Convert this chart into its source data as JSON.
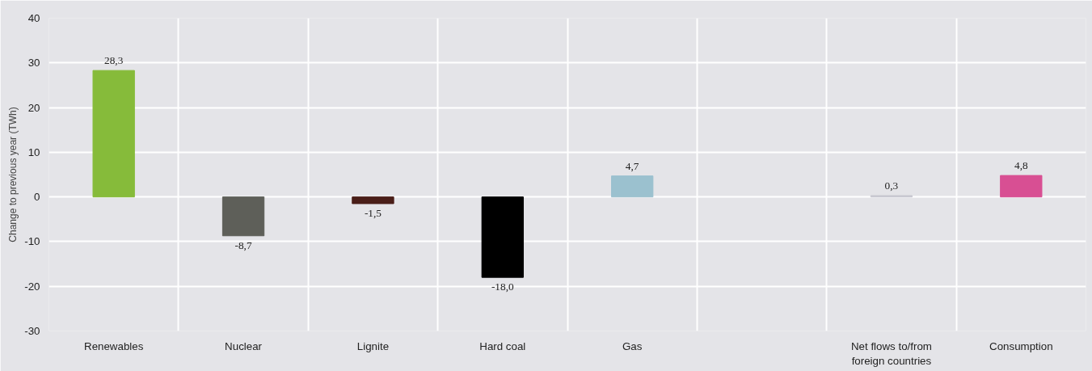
{
  "chart_data": {
    "type": "bar",
    "ylabel": "Change to previous year (TWh)",
    "categories": [
      "Renewables",
      "Nuclear",
      "Lignite",
      "Hard coal",
      "Gas",
      null,
      "Net flows to/from foreign countries",
      "Consumption"
    ],
    "values": [
      28.3,
      -8.7,
      -1.5,
      -18.0,
      4.7,
      null,
      0.3,
      4.8
    ],
    "value_labels": [
      "28,3",
      "-8,7",
      "-1,5",
      "-18,0",
      "4,7",
      null,
      "0,3",
      "4,8"
    ],
    "colors": [
      "#86bb3a",
      "#5e5f59",
      "#4a1e18",
      "#000000",
      "#9bc1cf",
      "#e4e4e8",
      "#c8c8d0",
      "#d84f93"
    ],
    "ylim": [
      -30,
      40
    ],
    "yticks": [
      -30,
      -20,
      -10,
      0,
      10,
      20,
      30,
      40
    ],
    "grid": true
  }
}
